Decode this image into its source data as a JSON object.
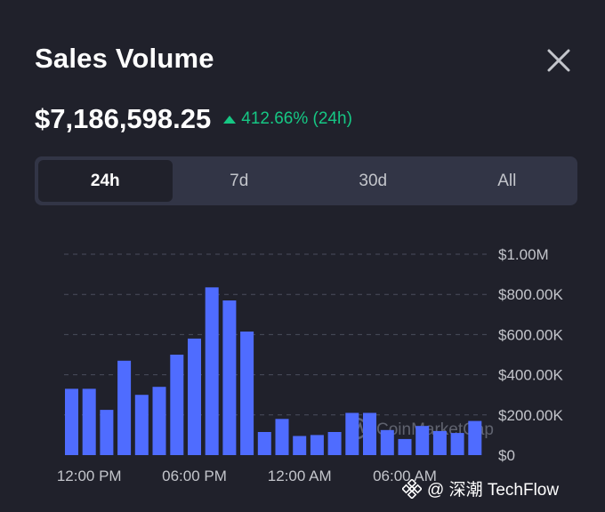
{
  "header": {
    "title": "Sales Volume"
  },
  "price": {
    "value": "$7,186,598.25",
    "change": "412.66% (24h)"
  },
  "tabs": [
    {
      "label": "24h",
      "active": true
    },
    {
      "label": "7d",
      "active": false
    },
    {
      "label": "30d",
      "active": false
    },
    {
      "label": "All",
      "active": false
    }
  ],
  "chart_data": {
    "type": "bar",
    "y_tick_labels": [
      "$1.00M",
      "$800.00K",
      "$600.00K",
      "$400.00K",
      "$200.00K",
      "$0"
    ],
    "x_tick_labels": [
      "12:00 PM",
      "06:00 PM",
      "12:00 AM",
      "06:00 AM"
    ],
    "ylim": [
      0,
      1000000
    ],
    "grid": true,
    "bar_color": "#4f6cff",
    "values": [
      330000,
      330000,
      225000,
      470000,
      300000,
      340000,
      500000,
      580000,
      835000,
      770000,
      615000,
      115000,
      180000,
      95000,
      100000,
      115000,
      210000,
      210000,
      125000,
      80000,
      145000,
      120000,
      110000,
      170000
    ],
    "watermark": "CoinMarketCap"
  },
  "footer": {
    "text": "@ 深潮 TechFlow"
  },
  "colors": {
    "background": "#20212b",
    "positive": "#16c784",
    "bar": "#4f6cff",
    "tab_bg": "#323546"
  },
  "icons": {
    "close": "close-icon",
    "trend": "triangle-up-icon",
    "watermark": "coinmarketcap-logo-icon",
    "footer": "binance-logo-icon"
  }
}
